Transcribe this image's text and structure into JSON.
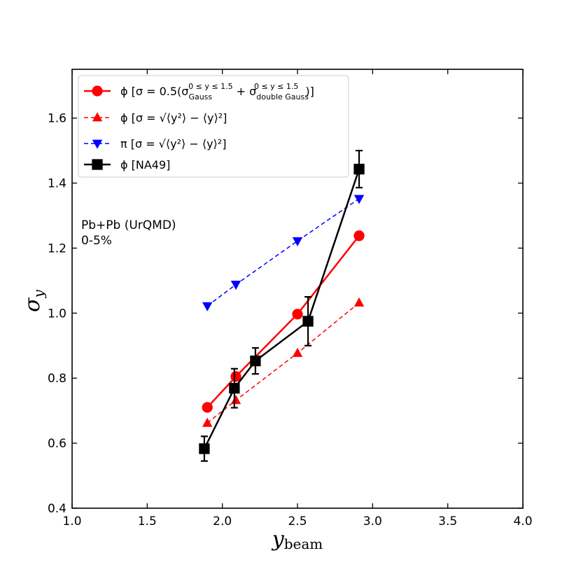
{
  "chart_data": {
    "type": "line",
    "xlabel": "y",
    "xlabel_sub": "beam",
    "ylabel": "σ",
    "ylabel_sub": "y",
    "xlim": [
      1.0,
      4.0
    ],
    "ylim": [
      0.4,
      1.75
    ],
    "xticks": [
      "1.0",
      "1.5",
      "2.0",
      "2.5",
      "3.0",
      "3.5",
      "4.0"
    ],
    "yticks": [
      "0.4",
      "0.6",
      "0.8",
      "1.0",
      "1.2",
      "1.4",
      "1.6"
    ],
    "xtick_values": [
      1.0,
      1.5,
      2.0,
      2.5,
      3.0,
      3.5,
      4.0
    ],
    "ytick_values": [
      0.4,
      0.6,
      0.8,
      1.0,
      1.2,
      1.4,
      1.6
    ],
    "grid": false,
    "legend_position": "top-left",
    "annotation_lines": [
      "Pb+Pb (UrQMD)",
      "0-5%"
    ],
    "series": [
      {
        "name": "ϕ  [σ = 0.5(σ Gauss + σ double Gauss)]",
        "legend_main": "ϕ  [σ = 0.5(σ",
        "legend_sub1": "Gauss",
        "legend_sup1": "0 ≤ y ≤ 1.5",
        "legend_mid": " + σ",
        "legend_sub2": "double Gauss",
        "legend_sup2": "0 ≤ y ≤ 1.5",
        "legend_end": ")]",
        "color": "#ff0000",
        "marker": "circle",
        "line": "solid",
        "x": [
          1.9,
          2.09,
          2.5,
          2.91
        ],
        "y": [
          0.71,
          0.805,
          0.997,
          1.238
        ]
      },
      {
        "name": "ϕ  [σ = √(⟨y²⟩ − ⟨y⟩²)]",
        "legend_text": "ϕ  [σ = √⟨y²⟩ − ⟨y⟩²]",
        "color": "#ff0000",
        "marker": "triangle-up",
        "line": "dashed",
        "x": [
          1.9,
          2.09,
          2.5,
          2.91
        ],
        "y": [
          0.662,
          0.732,
          0.877,
          1.032
        ]
      },
      {
        "name": "π  [σ = √(⟨y²⟩ − ⟨y⟩²)]",
        "legend_text": "π  [σ = √⟨y²⟩ − ⟨y⟩²]",
        "color": "#0000ff",
        "marker": "triangle-down",
        "line": "dashed",
        "x": [
          1.9,
          2.09,
          2.5,
          2.91
        ],
        "y": [
          1.022,
          1.088,
          1.222,
          1.352
        ]
      },
      {
        "name": "ϕ  [NA49]",
        "legend_text": "ϕ  [NA49]",
        "color": "#000000",
        "marker": "square",
        "line": "solid",
        "x": [
          1.88,
          2.08,
          2.22,
          2.57,
          2.91
        ],
        "y": [
          0.583,
          0.769,
          0.853,
          0.975,
          1.443
        ],
        "yerr": [
          0.038,
          0.06,
          0.04,
          0.075,
          0.057
        ]
      }
    ]
  }
}
